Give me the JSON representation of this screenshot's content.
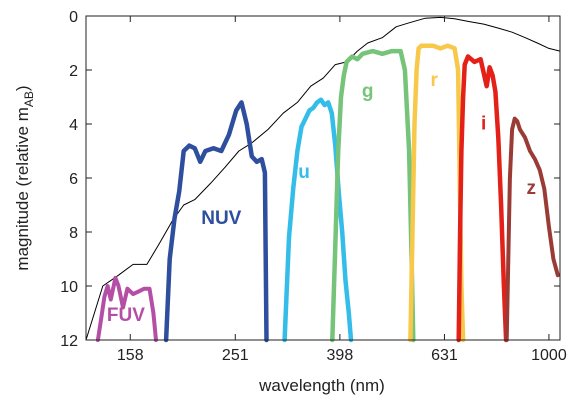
{
  "chart_data": {
    "type": "line",
    "xlabel": "wavelength (nm)",
    "ylabel": "magnitude (relative m",
    "ylabel_sub": "AB",
    "ylabel_close": ")",
    "xscale": "log",
    "xlim": [
      130,
      1050
    ],
    "ylim": [
      12,
      0
    ],
    "xticks": [
      158,
      251,
      398,
      631,
      1000
    ],
    "xtick_labels": [
      "158",
      "251",
      "398",
      "631",
      "1000"
    ],
    "yticks": [
      0,
      2,
      4,
      6,
      8,
      10,
      12
    ],
    "ytick_labels": [
      "0",
      "2",
      "4",
      "6",
      "8",
      "10",
      "12"
    ],
    "grid": false,
    "series": [
      {
        "name": "spectrum",
        "color": "#000000",
        "width": 1,
        "x": [
          130,
          140,
          150,
          160,
          170,
          180,
          190,
          200,
          210,
          225,
          240,
          255,
          270,
          290,
          310,
          330,
          350,
          370,
          390,
          410,
          430,
          450,
          480,
          510,
          540,
          580,
          620,
          660,
          700,
          750,
          800,
          850,
          900,
          950,
          1000,
          1050
        ],
        "y": [
          12,
          10,
          9.6,
          9.2,
          9.2,
          8.4,
          7.6,
          7.0,
          6.8,
          6.2,
          5.6,
          5.0,
          4.7,
          4.2,
          3.6,
          3.2,
          2.6,
          2.3,
          1.8,
          1.7,
          1.3,
          1.0,
          0.8,
          0.4,
          0.25,
          0.08,
          0.05,
          0.1,
          0.2,
          0.3,
          0.45,
          0.6,
          0.8,
          1.0,
          1.2,
          1.3
        ]
      },
      {
        "name": "FUV",
        "color": "#b54fa6",
        "width": 4,
        "x": [
          137,
          139,
          141,
          143,
          145,
          148,
          150,
          153,
          156,
          160,
          164,
          168,
          172,
          175,
          177
        ],
        "y": [
          12,
          11.2,
          10.4,
          10.0,
          10.5,
          9.7,
          10.0,
          10.8,
          10.1,
          10.3,
          10.2,
          10.1,
          10.1,
          11.0,
          12
        ]
      },
      {
        "name": "NUV",
        "color": "#2e4e9e",
        "width": 4.5,
        "x": [
          185,
          188,
          192,
          196,
          200,
          205,
          210,
          215,
          220,
          228,
          236,
          244,
          252,
          258,
          264,
          270,
          276,
          282,
          286,
          288
        ],
        "y": [
          12,
          9.0,
          7.5,
          6.5,
          5.0,
          4.8,
          4.9,
          5.4,
          5.0,
          4.9,
          5.0,
          4.4,
          3.5,
          3.2,
          4.0,
          5.2,
          5.4,
          5.3,
          5.8,
          12
        ]
      },
      {
        "name": "u",
        "color": "#33bde8",
        "width": 4.5,
        "x": [
          312,
          318,
          324,
          330,
          336,
          342,
          348,
          354,
          360,
          366,
          372,
          378,
          384,
          390,
          396,
          402,
          408,
          414,
          418
        ],
        "y": [
          12,
          8.2,
          6.4,
          5.0,
          4.1,
          3.8,
          3.5,
          3.4,
          3.2,
          3.1,
          3.3,
          3.2,
          3.6,
          4.8,
          6.5,
          8.0,
          9.8,
          11.0,
          12
        ]
      },
      {
        "name": "g",
        "color": "#76c37a",
        "width": 4.5,
        "x": [
          385,
          390,
          395,
          400,
          405,
          410,
          420,
          430,
          440,
          460,
          480,
          500,
          520,
          530,
          540,
          546,
          550
        ],
        "y": [
          12,
          8.5,
          5.0,
          3.0,
          2.2,
          1.7,
          1.5,
          1.6,
          1.4,
          1.3,
          1.4,
          1.3,
          1.3,
          2.0,
          5.0,
          9.0,
          12
        ]
      },
      {
        "name": "r",
        "color": "#f7c84a",
        "width": 4.5,
        "x": [
          543,
          548,
          553,
          558,
          563,
          570,
          580,
          600,
          620,
          640,
          660,
          670,
          675,
          680,
          685
        ],
        "y": [
          12,
          8.0,
          4.0,
          2.0,
          1.2,
          1.1,
          1.1,
          1.1,
          1.2,
          1.1,
          1.2,
          2.0,
          6.0,
          10.0,
          12
        ]
      },
      {
        "name": "i",
        "color": "#e32119",
        "width": 4.5,
        "x": [
          672,
          676,
          680,
          685,
          690,
          700,
          710,
          720,
          740,
          760,
          770,
          780,
          790,
          800,
          810,
          820,
          828
        ],
        "y": [
          12,
          8.0,
          5.0,
          3.0,
          1.8,
          1.5,
          1.6,
          1.7,
          1.6,
          2.6,
          1.9,
          2.2,
          2.8,
          4.5,
          7.0,
          10.0,
          12
        ]
      },
      {
        "name": "z",
        "color": "#9b3b36",
        "width": 4,
        "x": [
          830,
          836,
          842,
          850,
          860,
          870,
          880,
          900,
          920,
          940,
          960,
          980,
          1000,
          1020,
          1040
        ],
        "y": [
          12,
          9.0,
          6.0,
          4.2,
          3.8,
          3.9,
          4.2,
          4.5,
          5.0,
          5.3,
          5.7,
          6.4,
          7.8,
          9.0,
          9.6
        ]
      }
    ],
    "annotations": [
      {
        "text": "FUV",
        "color": "#b54fa6",
        "x": 155,
        "y": 11.3
      },
      {
        "text": "NUV",
        "color": "#2e4e9e",
        "x": 236,
        "y": 7.7
      },
      {
        "text": "u",
        "color": "#33bde8",
        "x": 340,
        "y": 6.0
      },
      {
        "text": "g",
        "color": "#76c37a",
        "x": 450,
        "y": 3.0
      },
      {
        "text": "r",
        "color": "#f7c84a",
        "x": 603,
        "y": 2.6
      },
      {
        "text": "i",
        "color": "#e32119",
        "x": 750,
        "y": 4.2
      },
      {
        "text": "z",
        "color": "#9b3b36",
        "x": 925,
        "y": 6.6
      }
    ]
  }
}
